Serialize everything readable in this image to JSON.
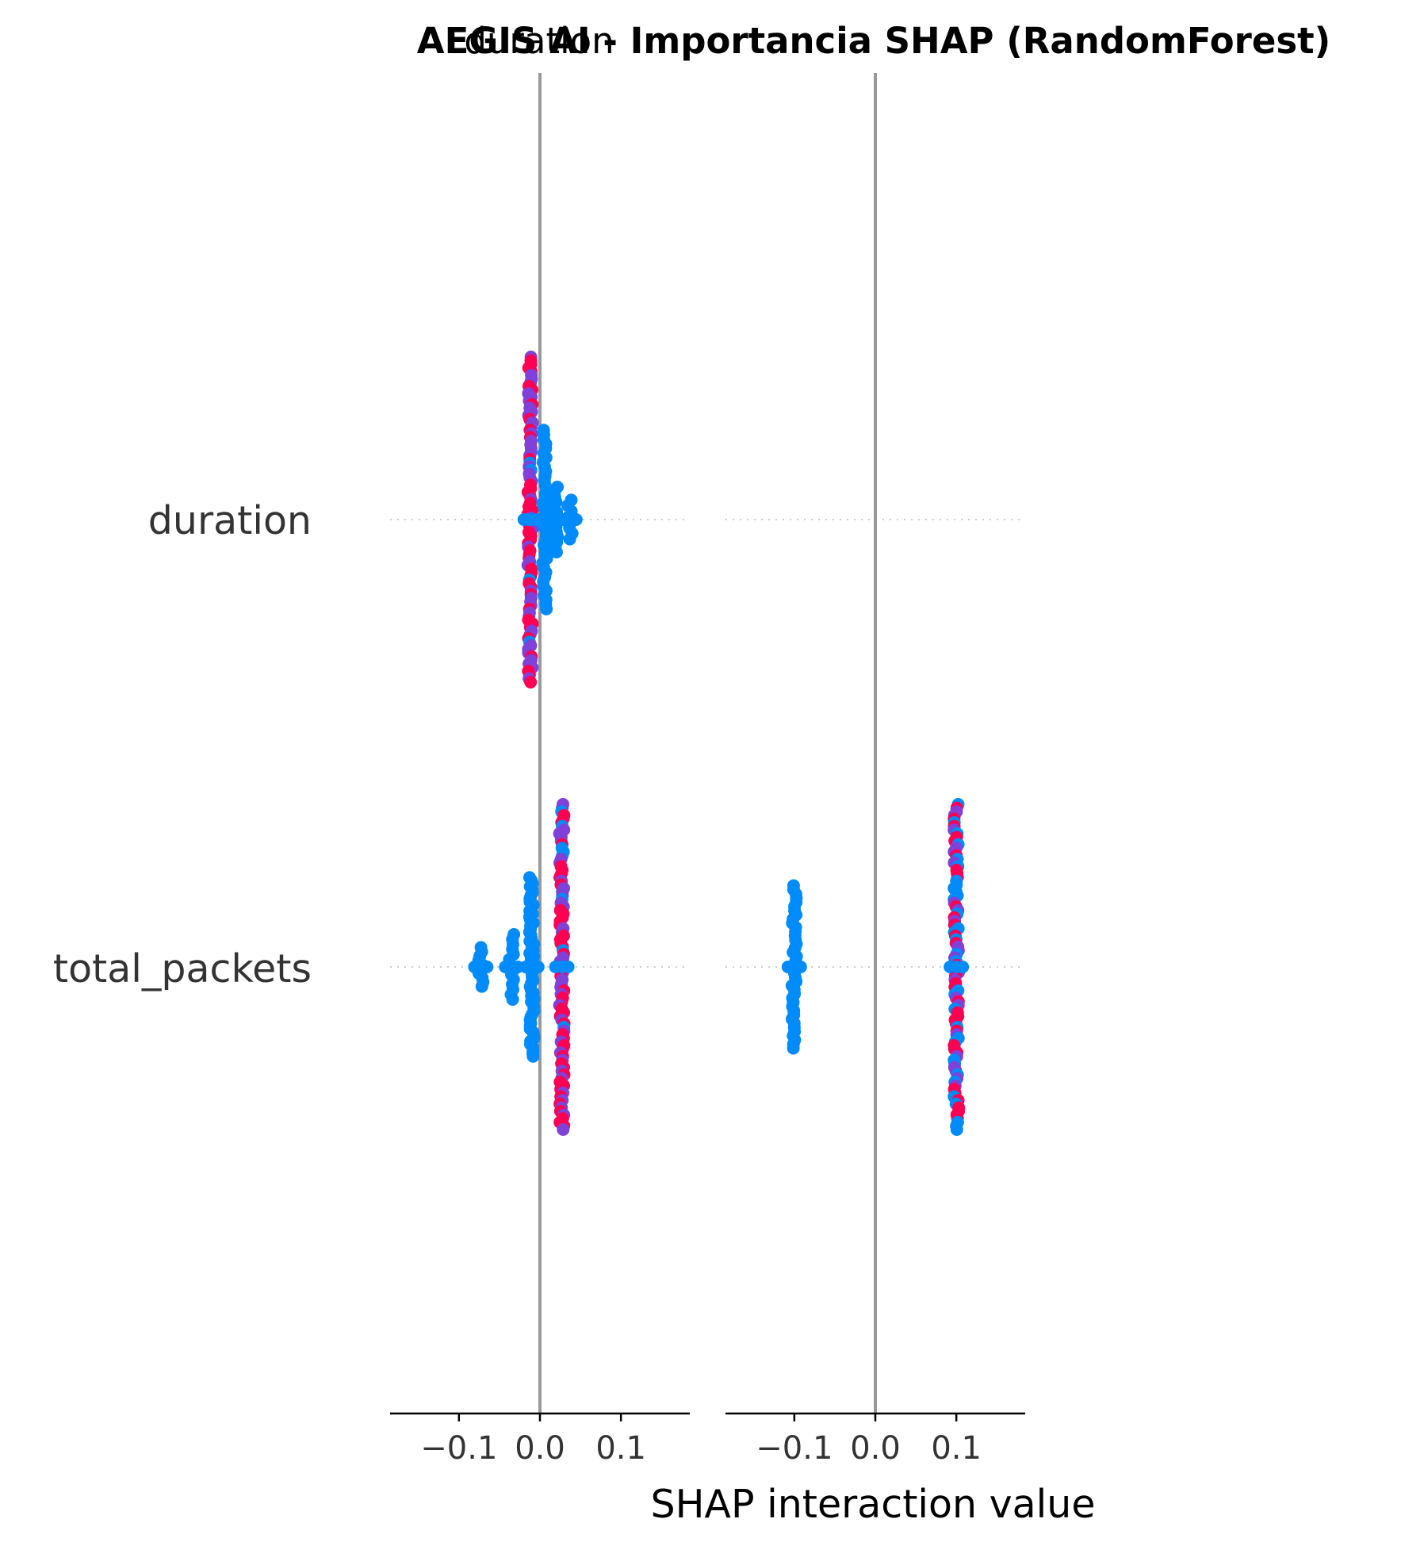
{
  "chart_data": {
    "type": "scatter",
    "title": "AEGIS AI - Importancia SHAP (RandomForest)",
    "xlabel": "SHAP interaction value",
    "features": [
      "duration",
      "total_packets"
    ],
    "xlim": [
      -0.185,
      0.185
    ],
    "xticks": [
      -0.1,
      0.0,
      0.1
    ],
    "xtick_labels": [
      "−0.1",
      "0.0",
      "0.1"
    ],
    "colors": {
      "low": "#008bfb",
      "mid": "#7f41d8",
      "high": "#ff0052",
      "zero_line": "#999999",
      "axis": "#000000",
      "grid": "#cccccc"
    },
    "panels": [
      {
        "title": "duration",
        "rows": [
          {
            "feature": "duration",
            "clusters": [
              {
                "x": -0.012,
                "count": 90,
                "spread": 1.0,
                "color_mix": [
                  0.05,
                  0.45,
                  0.5
                ]
              },
              {
                "x": 0.006,
                "count": 40,
                "spread": 0.55,
                "color_mix": [
                  1.0,
                  0.0,
                  0.0
                ]
              },
              {
                "x": 0.02,
                "count": 14,
                "spread": 0.2,
                "color_mix": [
                  1.0,
                  0.0,
                  0.0
                ]
              },
              {
                "x": 0.037,
                "count": 8,
                "spread": 0.12,
                "color_mix": [
                  1.0,
                  0.0,
                  0.0
                ]
              }
            ]
          },
          {
            "feature": "total_packets",
            "clusters": [
              {
                "x": -0.073,
                "count": 10,
                "spread": 0.12,
                "color_mix": [
                  1.0,
                  0.0,
                  0.0
                ]
              },
              {
                "x": -0.035,
                "count": 14,
                "spread": 0.2,
                "color_mix": [
                  1.0,
                  0.0,
                  0.0
                ]
              },
              {
                "x": -0.01,
                "count": 60,
                "spread": 0.55,
                "color_mix": [
                  1.0,
                  0.0,
                  0.0
                ]
              },
              {
                "x": 0.027,
                "count": 90,
                "spread": 1.0,
                "color_mix": [
                  0.05,
                  0.45,
                  0.5
                ]
              }
            ]
          }
        ]
      },
      {
        "title": "",
        "rows": [
          {
            "feature": "duration",
            "clusters": []
          },
          {
            "feature": "total_packets",
            "clusters": [
              {
                "x": -0.1,
                "count": 40,
                "spread": 0.5,
                "color_mix": [
                  1.0,
                  0.0,
                  0.0
                ]
              },
              {
                "x": 0.1,
                "count": 90,
                "spread": 1.0,
                "color_mix": [
                  0.3,
                  0.3,
                  0.4
                ]
              }
            ]
          }
        ]
      }
    ]
  }
}
